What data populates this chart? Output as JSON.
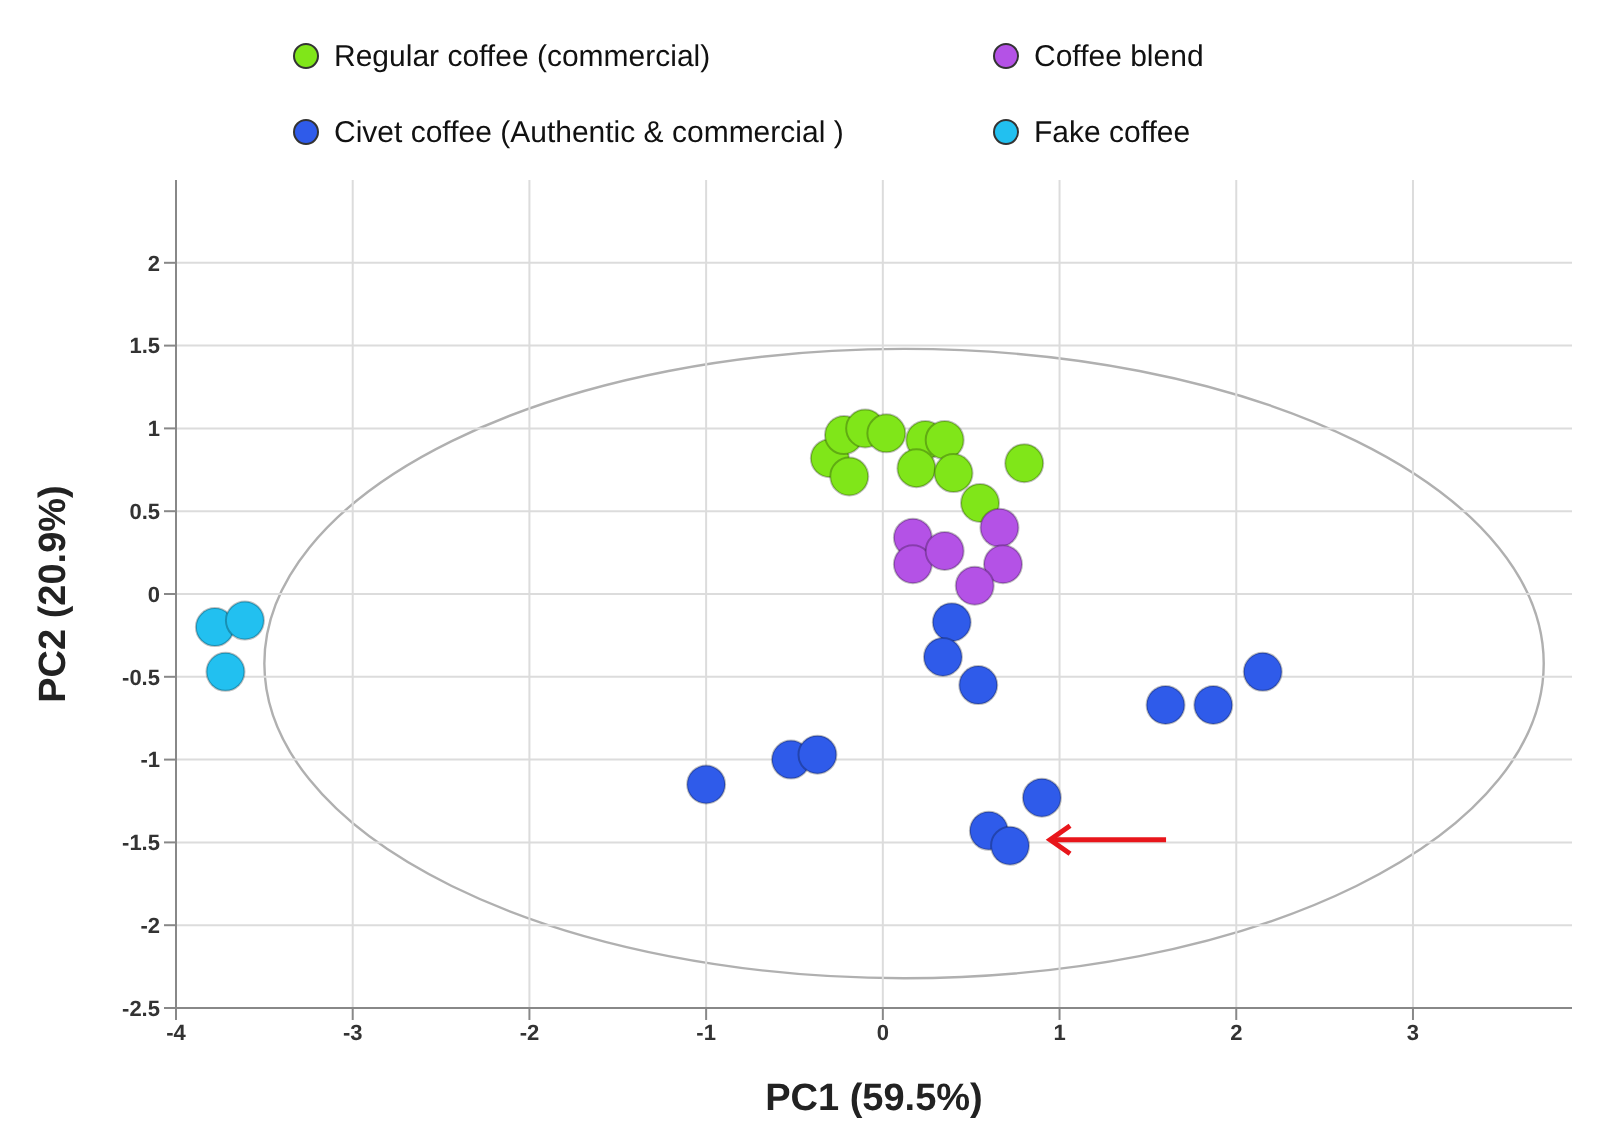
{
  "chart_data": {
    "type": "scatter",
    "xlabel": "PC1 (59.5%)",
    "ylabel": "PC2 (20.9%)",
    "xlim": [
      -4,
      3.9
    ],
    "xticks": [
      -4,
      -3,
      -2,
      -1,
      0,
      1,
      2,
      3
    ],
    "ylim": [
      -2.5,
      2.5
    ],
    "yticks": [
      -2.5,
      -2,
      -1.5,
      -1,
      -0.5,
      0,
      0.5,
      1,
      1.5,
      2
    ],
    "grid": true,
    "legend": "top",
    "marker": "circle",
    "series": [
      {
        "name": "Regular coffee (commercial)",
        "color": "#80e619",
        "x": [
          -0.3,
          -0.22,
          -0.1,
          0.02,
          -0.19,
          0.24,
          0.35,
          0.19,
          0.4,
          0.55,
          0.8
        ],
        "values": [
          0.82,
          0.96,
          1.0,
          0.97,
          0.71,
          0.93,
          0.93,
          0.76,
          0.73,
          0.55,
          0.79
        ]
      },
      {
        "name": "Civet coffee (Authentic & commercial )",
        "color": "#2f5bea",
        "x": [
          0.39,
          0.34,
          0.54,
          -1.0,
          -0.52,
          -0.37,
          0.9,
          0.6,
          0.72,
          1.6,
          1.87,
          2.15
        ],
        "values": [
          -0.17,
          -0.38,
          -0.55,
          -1.15,
          -1.0,
          -0.97,
          -1.23,
          -1.43,
          -1.52,
          -0.67,
          -0.67,
          -0.47
        ]
      },
      {
        "name": "Coffee blend",
        "color": "#b452e6",
        "x": [
          0.17,
          0.17,
          0.35,
          0.66,
          0.68,
          0.52
        ],
        "values": [
          0.34,
          0.18,
          0.26,
          0.4,
          0.18,
          0.05
        ]
      },
      {
        "name": "Fake coffee",
        "color": "#22c0f0",
        "x": [
          -3.78,
          -3.61,
          -3.72
        ],
        "values": [
          -0.2,
          -0.16,
          -0.47
        ]
      }
    ]
  }
}
